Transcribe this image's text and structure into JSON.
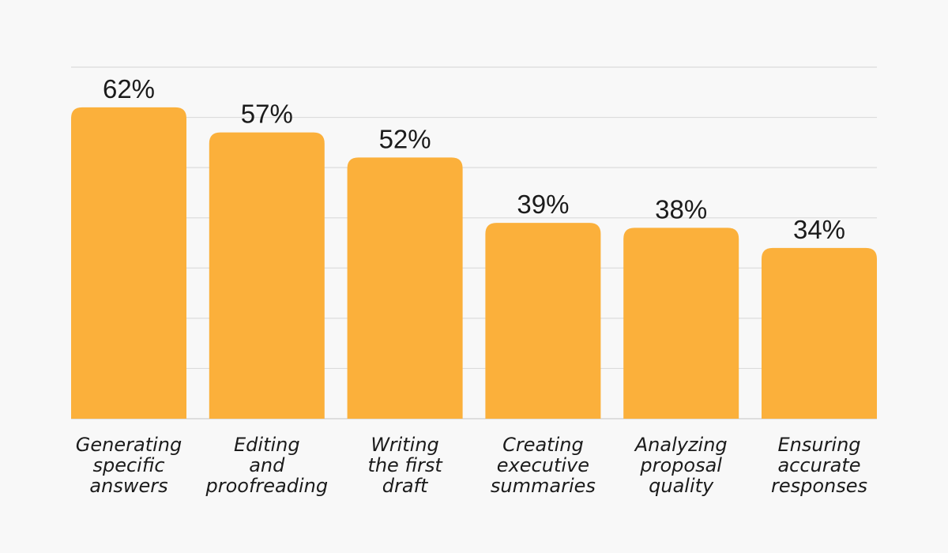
{
  "chart_data": {
    "type": "bar",
    "categories": [
      [
        "Generating",
        "specific",
        "answers"
      ],
      [
        "Editing",
        "and",
        "proofreading"
      ],
      [
        "Writing",
        "the first",
        "draft"
      ],
      [
        "Creating",
        "executive",
        "summaries"
      ],
      [
        "Analyzing",
        "proposal",
        "quality"
      ],
      [
        "Ensuring",
        "accurate",
        "responses"
      ]
    ],
    "values": [
      62,
      57,
      52,
      39,
      38,
      34
    ],
    "value_labels": [
      "62%",
      "57%",
      "52%",
      "39%",
      "38%",
      "34%"
    ],
    "ylim": [
      0,
      70
    ],
    "grid": true,
    "bar_color": "#fbb03b",
    "background_color": "#f8f8f8"
  }
}
